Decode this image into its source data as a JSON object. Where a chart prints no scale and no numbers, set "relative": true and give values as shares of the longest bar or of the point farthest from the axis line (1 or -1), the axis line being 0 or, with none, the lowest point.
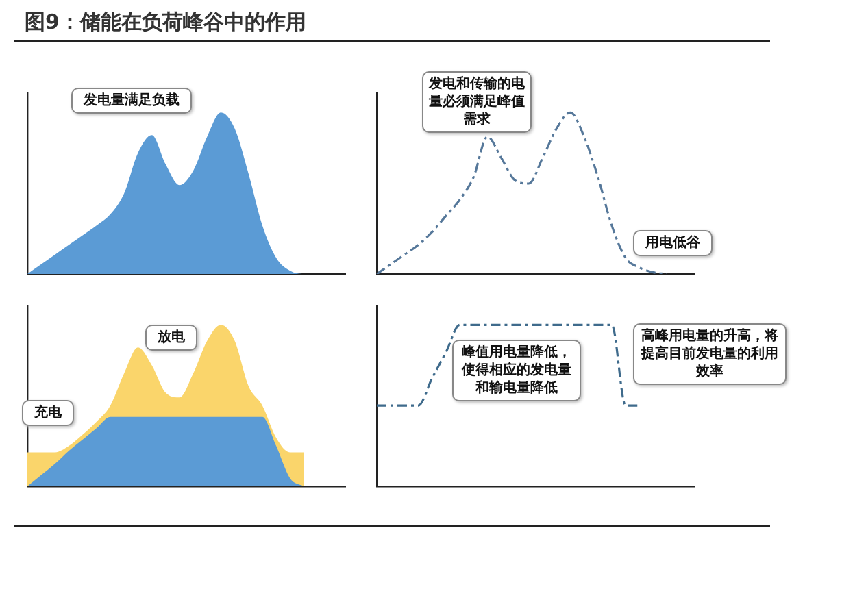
{
  "chart_data": [
    {
      "type": "area",
      "title": "图9：储能在负荷峰谷中的作用",
      "relative": true,
      "categories": [
        null,
        null,
        null,
        null,
        null,
        null,
        null,
        null,
        null,
        null,
        null,
        null,
        null,
        null,
        null,
        null,
        null,
        null,
        null,
        null,
        null,
        null,
        null,
        null
      ],
      "series": [
        {
          "color": "#5b9bd5",
          "values": [
            0,
            0.06,
            0.12,
            0.18,
            0.24,
            0.3,
            0.37,
            0.5,
            0.75,
            0.86,
            0.68,
            0.55,
            0.64,
            0.85,
            1,
            0.9,
            0.62,
            0.3,
            0.1,
            0.02,
            0,
            0,
            0,
            0
          ]
        }
      ],
      "annotations": [
        "发电量满足负载"
      ]
    },
    {
      "type": "line",
      "relative": true,
      "line_style": "dashed",
      "categories": [
        null,
        null,
        null,
        null,
        null,
        null,
        null,
        null,
        null,
        null,
        null,
        null,
        null,
        null,
        null,
        null,
        null,
        null,
        null,
        null,
        null,
        null,
        null,
        null
      ],
      "series": [
        {
          "color": "#56789a",
          "values": [
            0,
            0.06,
            0.12,
            0.18,
            0.26,
            0.36,
            0.46,
            0.6,
            0.85,
            0.72,
            0.58,
            0.56,
            0.72,
            0.9,
            1,
            0.85,
            0.6,
            0.3,
            0.1,
            0.04,
            0.01,
            0,
            null,
            null
          ]
        }
      ],
      "annotations": [
        "发电和传输的电量必须满足峰值需求",
        "用电低谷"
      ]
    },
    {
      "type": "area",
      "relative": true,
      "categories": [
        null,
        null,
        null,
        null,
        null,
        null,
        null,
        null,
        null,
        null,
        null,
        null,
        null,
        null,
        null,
        null,
        null,
        null,
        null,
        null,
        null,
        null,
        null,
        null
      ],
      "series": [
        {
          "color": "#fad56b",
          "values": [
            0.21,
            0.21,
            0.21,
            0.25,
            0.32,
            0.4,
            0.5,
            0.7,
            0.86,
            0.75,
            0.58,
            0.55,
            0.7,
            0.9,
            1,
            0.9,
            0.62,
            0.5,
            0.3,
            0.21,
            0.21,
            null,
            null,
            null
          ]
        },
        {
          "color": "#5b9bd5",
          "values": [
            0,
            0.07,
            0.14,
            0.22,
            0.29,
            0.36,
            0.43,
            0.43,
            0.43,
            0.43,
            0.43,
            0.43,
            0.43,
            0.43,
            0.43,
            0.43,
            0.43,
            0.43,
            0.25,
            0.05,
            0,
            null,
            null,
            null
          ]
        }
      ],
      "annotations": [
        "放电",
        "充电"
      ]
    },
    {
      "type": "line",
      "relative": true,
      "line_style": "dashed",
      "categories": [
        null,
        null,
        null,
        null,
        null,
        null,
        null,
        null,
        null,
        null,
        null,
        null,
        null,
        null,
        null,
        null,
        null,
        null,
        null,
        null,
        null,
        null,
        null,
        null
      ],
      "series": [
        {
          "color": "#3f6b8c",
          "values": [
            0.5,
            0.5,
            0.5,
            0.5,
            0.67,
            0.83,
            1,
            1,
            1,
            1,
            1,
            1,
            1,
            1,
            1,
            1,
            1,
            1,
            0.5,
            0.5,
            null,
            null,
            null,
            null
          ]
        }
      ],
      "annotations": [
        "峰值用电量降低，使得相应的发电量和输电量降低",
        "高峰用电量的升高，将提高目前发电量的利用效率"
      ]
    }
  ]
}
